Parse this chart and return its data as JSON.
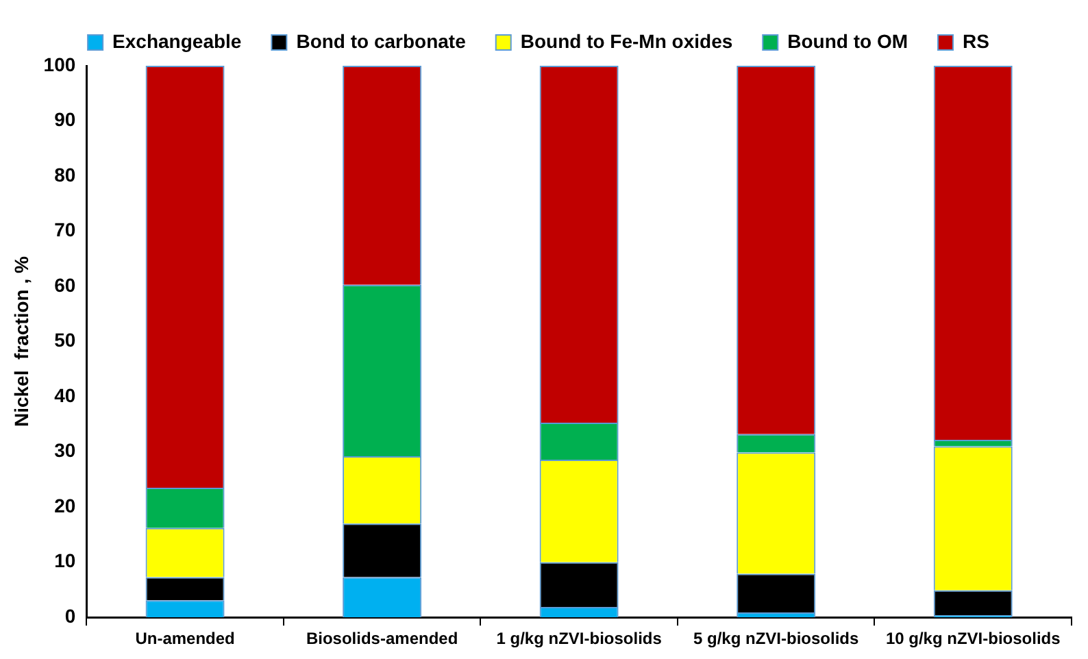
{
  "chart_data": {
    "type": "bar",
    "stacked": true,
    "ylabel": "Nickel  fraction , %",
    "categories": [
      "Un-amended",
      "Biosolids-amended",
      "1 g/kg nZVI-biosolids",
      "5 g/kg nZVI-biosolids",
      "10 g/kg nZVI-biosolids"
    ],
    "series": [
      {
        "name": "Exchangeable",
        "color": "#00b0f0",
        "values": [
          3.1,
          7.3,
          1.9,
          0.9,
          0.4
        ]
      },
      {
        "name": "Bond to carbonate",
        "color": "#000000",
        "values": [
          4.2,
          9.7,
          8.1,
          7.0,
          4.5
        ]
      },
      {
        "name": "Bound to Fe-Mn oxides",
        "color": "#ffff00",
        "values": [
          8.9,
          12.2,
          18.6,
          22.0,
          26.1
        ]
      },
      {
        "name": "Bound to OM",
        "color": "#00b050",
        "values": [
          7.3,
          31.1,
          6.7,
          3.3,
          1.2
        ]
      },
      {
        "name": "RS",
        "color": "#c00000",
        "values": [
          76.5,
          39.7,
          64.7,
          66.8,
          67.8
        ]
      }
    ],
    "ylim": [
      0,
      100
    ],
    "yticks": [
      0,
      10,
      20,
      30,
      40,
      50,
      60,
      70,
      80,
      90,
      100
    ],
    "grid": false,
    "legend": "top"
  }
}
